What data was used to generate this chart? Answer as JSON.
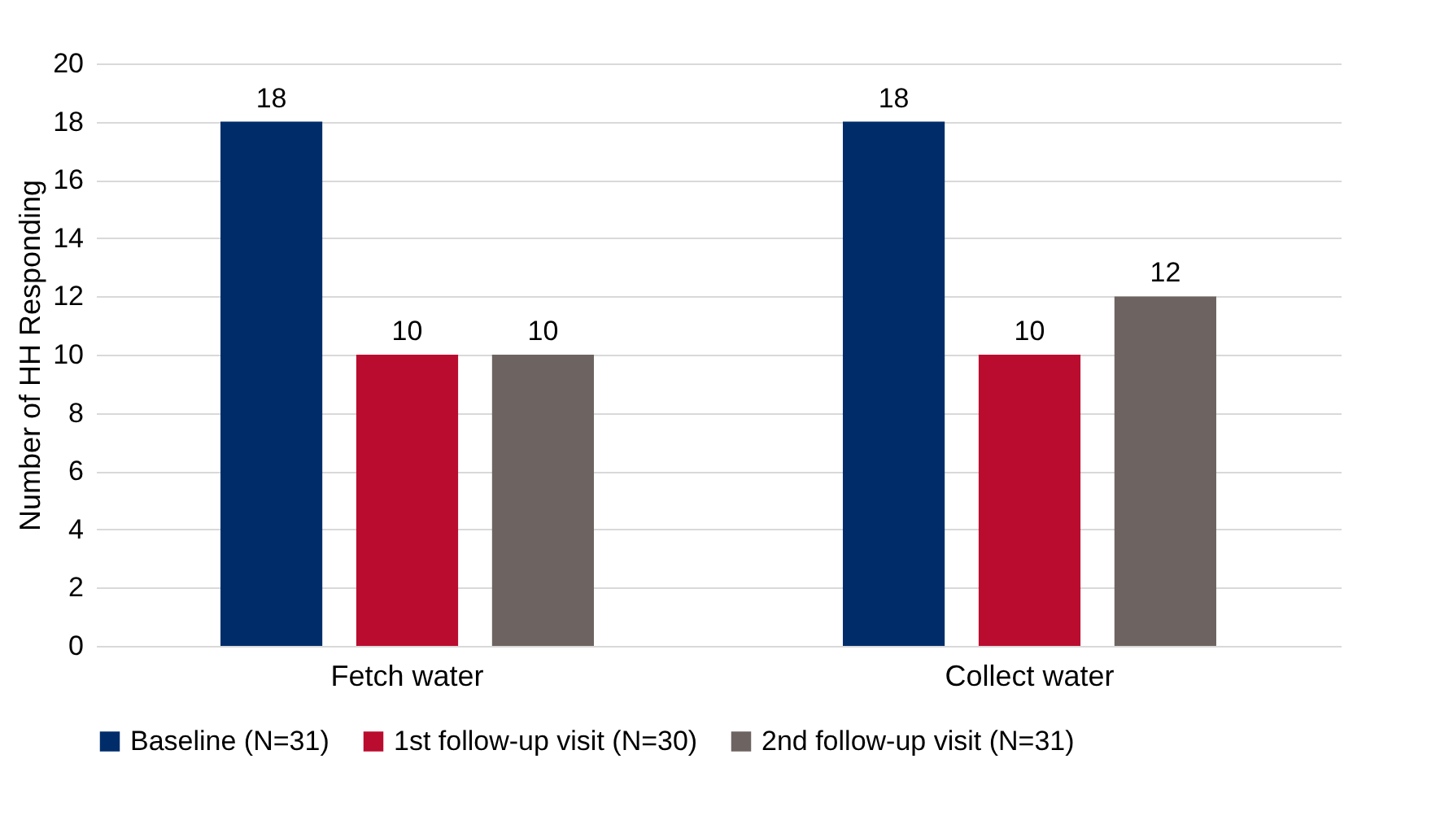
{
  "chart_data": {
    "type": "bar",
    "ylabel": "Number of HH Responding",
    "categories": [
      "Fetch water",
      "Collect water"
    ],
    "series": [
      {
        "name": "Baseline (N=31)",
        "color": "#002d6a",
        "values": [
          18,
          18
        ]
      },
      {
        "name": "1st follow-up visit (N=30)",
        "color": "#ba0c2f",
        "values": [
          10,
          10
        ]
      },
      {
        "name": "2nd follow-up visit (N=31)",
        "color": "#6d6461",
        "values": [
          10,
          12
        ]
      }
    ],
    "ylim": [
      0,
      20
    ],
    "yticks": [
      0,
      2,
      4,
      6,
      8,
      10,
      12,
      14,
      16,
      18,
      20
    ],
    "grid": "y",
    "legend": "bottom",
    "data_labels": true
  }
}
